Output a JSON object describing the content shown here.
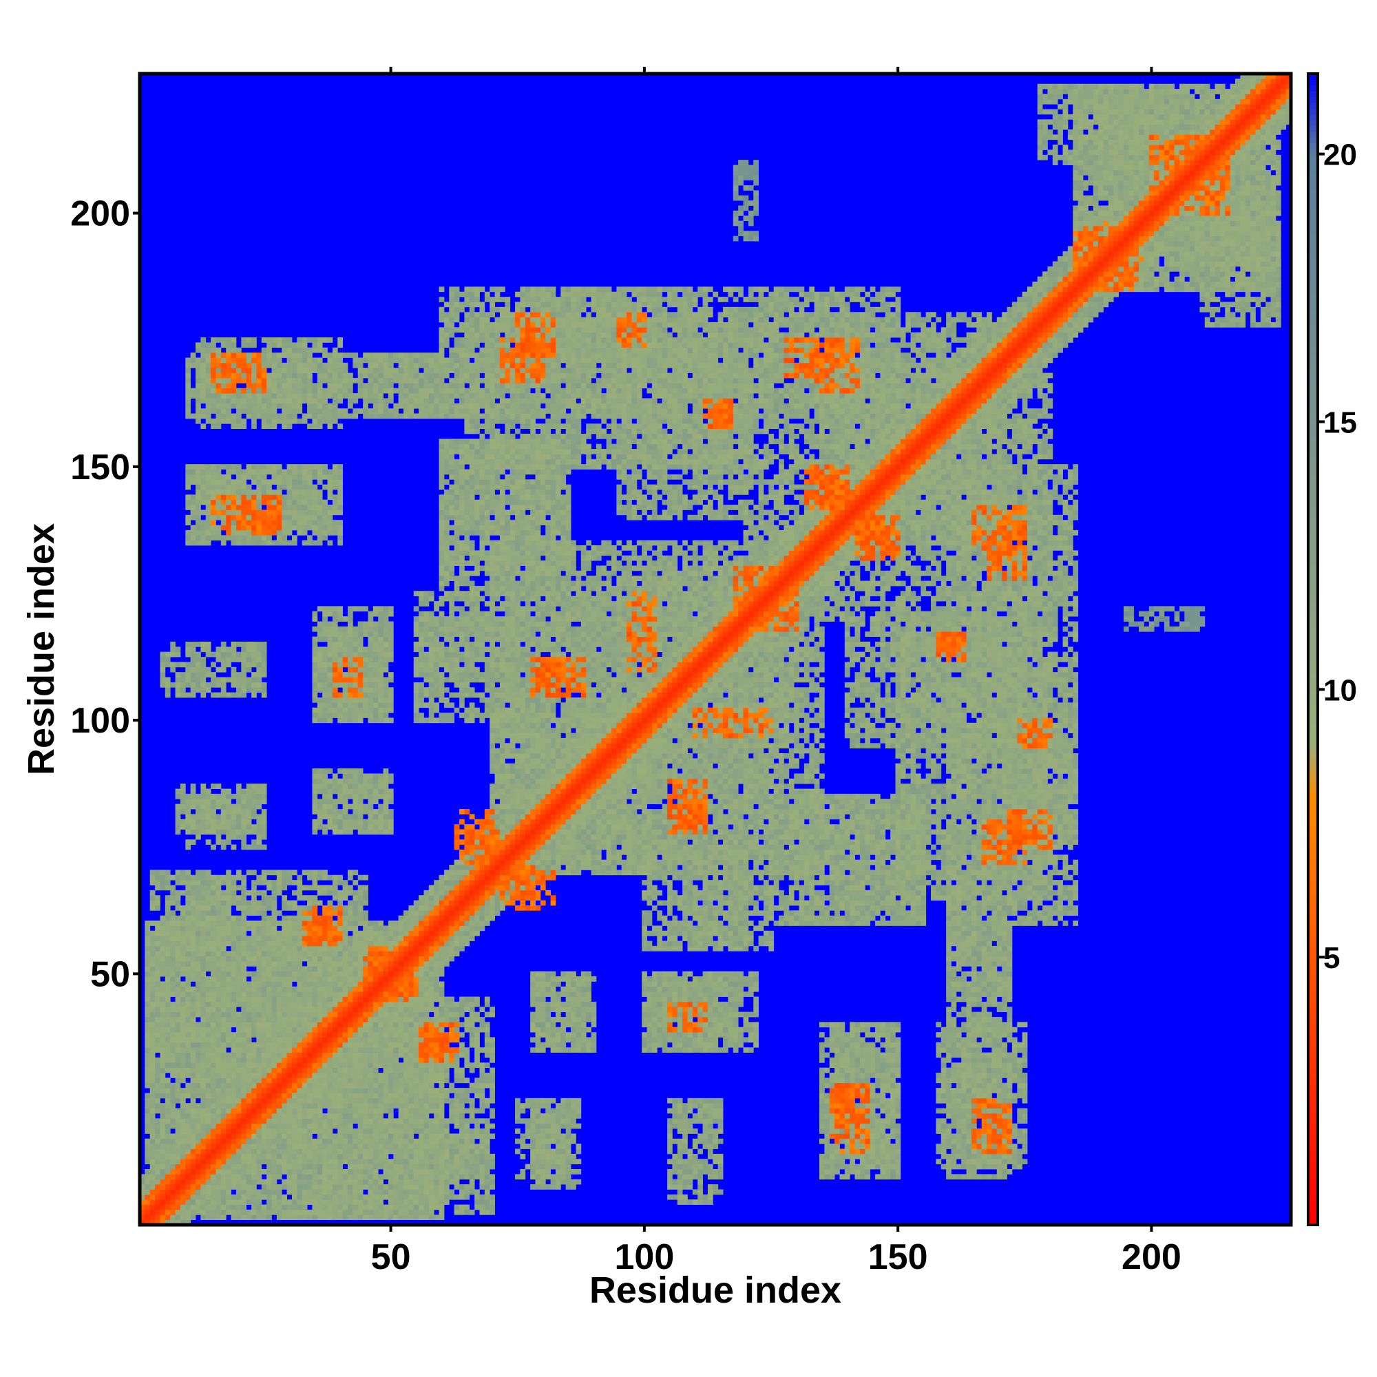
{
  "chart_data": {
    "type": "heatmap",
    "title": "",
    "xlabel": "Residue index",
    "ylabel": "Residue index",
    "n_residues": 227,
    "xlim": [
      0.5,
      227.5
    ],
    "ylim": [
      0.5,
      227.5
    ],
    "xticks": [
      50,
      100,
      150,
      200
    ],
    "yticks": [
      50,
      100,
      150,
      200
    ],
    "colorbar": {
      "ticks": [
        5,
        10,
        15,
        20
      ],
      "range": [
        0,
        21.5
      ],
      "colors": [
        "#ff0000",
        "#ff8c00",
        "#9aaf7a",
        "#5b7fa0",
        "#0000ff"
      ],
      "stops": [
        0,
        8,
        9,
        20,
        21.5
      ]
    },
    "background_value": 21.5,
    "diagonal": {
      "core_value": 2.5,
      "band_value": 6,
      "shoulder_value": 11
    },
    "contact_regions": [
      {
        "x": [
          2,
          60
        ],
        "y": [
          2,
          60
        ],
        "value": 11
      },
      {
        "x": [
          3,
          18
        ],
        "y": [
          60,
          70
        ],
        "value": 11
      },
      {
        "x": [
          25,
          60
        ],
        "y": [
          15,
          40
        ],
        "value": 11
      },
      {
        "x": [
          55,
          70
        ],
        "y": [
          10,
          45
        ],
        "value": 11
      },
      {
        "x": [
          35,
          60
        ],
        "y": [
          2,
          15
        ],
        "value": 11
      },
      {
        "x": [
          78,
          87
        ],
        "y": [
          8,
          25
        ],
        "value": 11
      },
      {
        "x": [
          100,
          118
        ],
        "y": [
          35,
          50
        ],
        "value": 11
      },
      {
        "x": [
          78,
          88
        ],
        "y": [
          35,
          50
        ],
        "value": 11
      },
      {
        "x": [
          110,
          125
        ],
        "y": [
          55,
          70
        ],
        "value": 11
      },
      {
        "x": [
          137,
          150
        ],
        "y": [
          12,
          40
        ],
        "value": 11
      },
      {
        "x": [
          158,
          175
        ],
        "y": [
          12,
          40
        ],
        "value": 11
      },
      {
        "x": [
          160,
          172
        ],
        "y": [
          45,
          70
        ],
        "value": 11
      },
      {
        "x": [
          10,
          25
        ],
        "y": [
          75,
          85
        ],
        "value": 11
      },
      {
        "x": [
          35,
          50
        ],
        "y": [
          78,
          90
        ],
        "value": 11
      },
      {
        "x": [
          5,
          25
        ],
        "y": [
          105,
          115
        ],
        "value": 11
      },
      {
        "x": [
          35,
          50
        ],
        "y": [
          100,
          122
        ],
        "value": 11
      },
      {
        "x": [
          55,
          75
        ],
        "y": [
          100,
          120
        ],
        "value": 11
      },
      {
        "x": [
          70,
          100
        ],
        "y": [
          70,
          125
        ],
        "value": 11
      },
      {
        "x": [
          100,
          135
        ],
        "y": [
          70,
          130
        ],
        "value": 11
      },
      {
        "x": [
          125,
          155
        ],
        "y": [
          60,
          85
        ],
        "value": 11
      },
      {
        "x": [
          150,
          180
        ],
        "y": [
          65,
          120
        ],
        "value": 11
      },
      {
        "x": [
          170,
          185
        ],
        "y": [
          75,
          110
        ],
        "value": 11
      },
      {
        "x": [
          135,
          180
        ],
        "y": [
          120,
          170
        ],
        "value": 11
      },
      {
        "x": [
          10,
          40
        ],
        "y": [
          135,
          150
        ],
        "value": 11
      },
      {
        "x": [
          60,
          85
        ],
        "y": [
          130,
          155
        ],
        "value": 11
      },
      {
        "x": [
          95,
          120
        ],
        "y": [
          140,
          175
        ],
        "value": 11
      },
      {
        "x": [
          10,
          60
        ],
        "y": [
          160,
          172
        ],
        "value": 11
      },
      {
        "x": [
          60,
          100
        ],
        "y": [
          160,
          185
        ],
        "value": 11
      },
      {
        "x": [
          110,
          150
        ],
        "y": [
          160,
          185
        ],
        "value": 11
      },
      {
        "x": [
          185,
          225
        ],
        "y": [
          185,
          225
        ],
        "value": 11
      },
      {
        "x": [
          178,
          200
        ],
        "y": [
          210,
          225
        ],
        "value": 11
      },
      {
        "x": [
          205,
          222
        ],
        "y": [
          190,
          205
        ],
        "value": 11
      },
      {
        "x": [
          195,
          210
        ],
        "y": [
          118,
          122
        ],
        "value": 14
      }
    ],
    "close_contacts": [
      {
        "x": [
          75,
          82
        ],
        "y": [
          172,
          180
        ],
        "value": 6
      },
      {
        "x": [
          95,
          100
        ],
        "y": [
          175,
          180
        ],
        "value": 6
      },
      {
        "x": [
          133,
          142
        ],
        "y": [
          165,
          175
        ],
        "value": 6
      },
      {
        "x": [
          113,
          117
        ],
        "y": [
          158,
          163
        ],
        "value": 6
      },
      {
        "x": [
          133,
          140
        ],
        "y": [
          142,
          150
        ],
        "value": 6
      },
      {
        "x": [
          143,
          150
        ],
        "y": [
          132,
          140
        ],
        "value": 6
      },
      {
        "x": [
          168,
          175
        ],
        "y": [
          128,
          138
        ],
        "value": 6
      },
      {
        "x": [
          15,
          28
        ],
        "y": [
          138,
          144
        ],
        "value": 6
      },
      {
        "x": [
          15,
          25
        ],
        "y": [
          165,
          172
        ],
        "value": 6
      },
      {
        "x": [
          78,
          88
        ],
        "y": [
          105,
          112
        ],
        "value": 6
      },
      {
        "x": [
          158,
          163
        ],
        "y": [
          112,
          117
        ],
        "value": 6
      },
      {
        "x": [
          174,
          178
        ],
        "y": [
          95,
          100
        ],
        "value": 6
      },
      {
        "x": [
          105,
          112
        ],
        "y": [
          80,
          86
        ],
        "value": 6
      },
      {
        "x": [
          167,
          175
        ],
        "y": [
          72,
          80
        ],
        "value": 6
      },
      {
        "x": [
          65,
          72
        ],
        "y": [
          72,
          78
        ],
        "value": 6
      },
      {
        "x": [
          73,
          82
        ],
        "y": [
          63,
          70
        ],
        "value": 6
      },
      {
        "x": [
          33,
          40
        ],
        "y": [
          56,
          63
        ],
        "value": 6
      },
      {
        "x": [
          47,
          55
        ],
        "y": [
          45,
          52
        ],
        "value": 6
      },
      {
        "x": [
          57,
          62
        ],
        "y": [
          33,
          40
        ],
        "value": 6
      },
      {
        "x": [
          39,
          44
        ],
        "y": [
          105,
          112
        ],
        "value": 6
      },
      {
        "x": [
          118,
          126
        ],
        "y": [
          122,
          130
        ],
        "value": 6
      },
      {
        "x": [
          110,
          125
        ],
        "y": [
          97,
          102
        ],
        "value": 6
      },
      {
        "x": [
          137,
          142
        ],
        "y": [
          18,
          28
        ],
        "value": 6
      },
      {
        "x": [
          168,
          172
        ],
        "y": [
          15,
          20
        ],
        "value": 6
      },
      {
        "x": [
          185,
          195
        ],
        "y": [
          190,
          198
        ],
        "value": 6
      },
      {
        "x": [
          200,
          210
        ],
        "y": [
          205,
          215
        ],
        "value": 6
      }
    ]
  }
}
